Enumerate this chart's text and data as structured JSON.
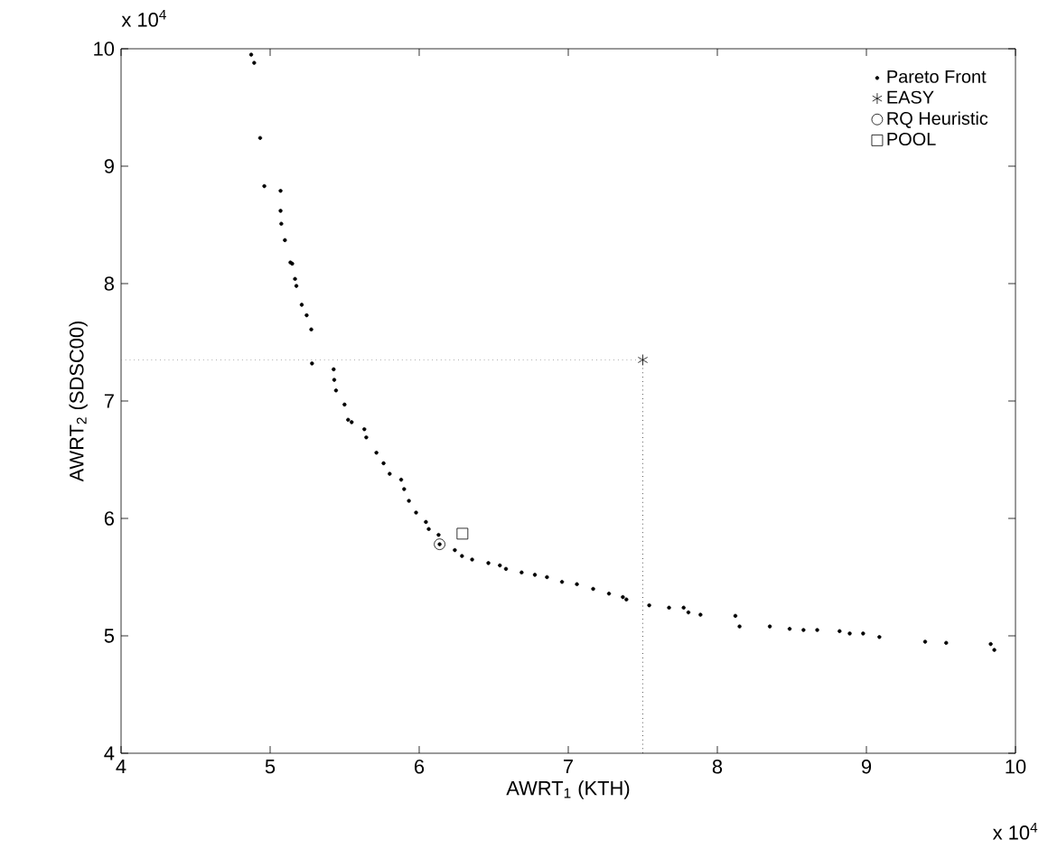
{
  "chart_data": {
    "type": "scatter",
    "xlabel": "AWRT$_{1}$ (KTH)",
    "ylabel": "AWRT$_{2}$ (SDSC00)",
    "xlim": [
      4,
      10
    ],
    "ylim": [
      4,
      10
    ],
    "xticks": [
      4,
      5,
      6,
      7,
      8,
      9,
      10
    ],
    "yticks": [
      4,
      5,
      6,
      7,
      8,
      9,
      10
    ],
    "grid": false,
    "legend": "top right",
    "annotations": [
      "x 10$^{4}$",
      "x 10$^{4}$"
    ],
    "ref_lines": [
      {
        "axis": "y",
        "value": 7.35,
        "line_style": "dotted",
        "color": "#808080"
      },
      {
        "axis": "x",
        "value": 7.5,
        "line_style": "dotted",
        "color": "#000000"
      }
    ],
    "series": [
      {
        "name": "Pareto Front",
        "color": "#000000",
        "marker": "circle",
        "x": [
          4.873,
          4.893,
          4.933,
          4.961,
          5.07,
          5.07,
          5.075,
          5.099,
          5.136,
          5.148,
          5.167,
          5.176,
          5.212,
          5.245,
          5.276,
          5.281,
          5.426,
          5.43,
          5.442,
          5.499,
          5.523,
          5.547,
          5.632,
          5.645,
          5.713,
          5.761,
          5.802,
          5.879,
          5.899,
          5.931,
          5.979,
          6.045,
          6.064,
          6.13,
          6.137,
          6.239,
          6.287,
          6.355,
          6.464,
          6.541,
          6.582,
          6.687,
          6.776,
          6.857,
          6.958,
          7.058,
          7.167,
          7.273,
          7.366,
          7.39,
          7.543,
          7.676,
          7.774,
          7.806,
          7.887,
          8.121,
          8.149,
          8.352,
          8.485,
          8.578,
          8.67,
          8.82,
          8.888,
          8.978,
          9.087,
          9.394,
          9.535,
          9.834,
          9.858
        ],
        "values": [
          9.95,
          9.88,
          9.24,
          8.83,
          8.79,
          8.62,
          8.51,
          8.37,
          8.18,
          8.17,
          8.04,
          7.98,
          7.82,
          7.73,
          7.61,
          7.32,
          7.27,
          7.18,
          7.09,
          6.97,
          6.84,
          6.82,
          6.76,
          6.69,
          6.56,
          6.47,
          6.38,
          6.33,
          6.25,
          6.15,
          6.05,
          5.97,
          5.91,
          5.86,
          5.78,
          5.73,
          5.68,
          5.65,
          5.62,
          5.6,
          5.57,
          5.54,
          5.52,
          5.5,
          5.46,
          5.44,
          5.4,
          5.36,
          5.33,
          5.31,
          5.26,
          5.24,
          5.24,
          5.2,
          5.18,
          5.17,
          5.08,
          5.08,
          5.06,
          5.05,
          5.05,
          5.04,
          5.02,
          5.02,
          4.99,
          4.95,
          4.94,
          4.93,
          4.88
        ]
      },
      {
        "name": "EASY",
        "color": "#000000",
        "marker": "cross",
        "x": [
          7.5
        ],
        "values": [
          7.35
        ]
      },
      {
        "name": "RQ Heuristic",
        "color": "#000000",
        "marker": "circle_open",
        "x": [
          6.137
        ],
        "values": [
          5.78
        ]
      },
      {
        "name": "POOL",
        "color": "#000000",
        "marker": "square",
        "x": [
          6.29
        ],
        "values": [
          5.87
        ]
      }
    ]
  }
}
